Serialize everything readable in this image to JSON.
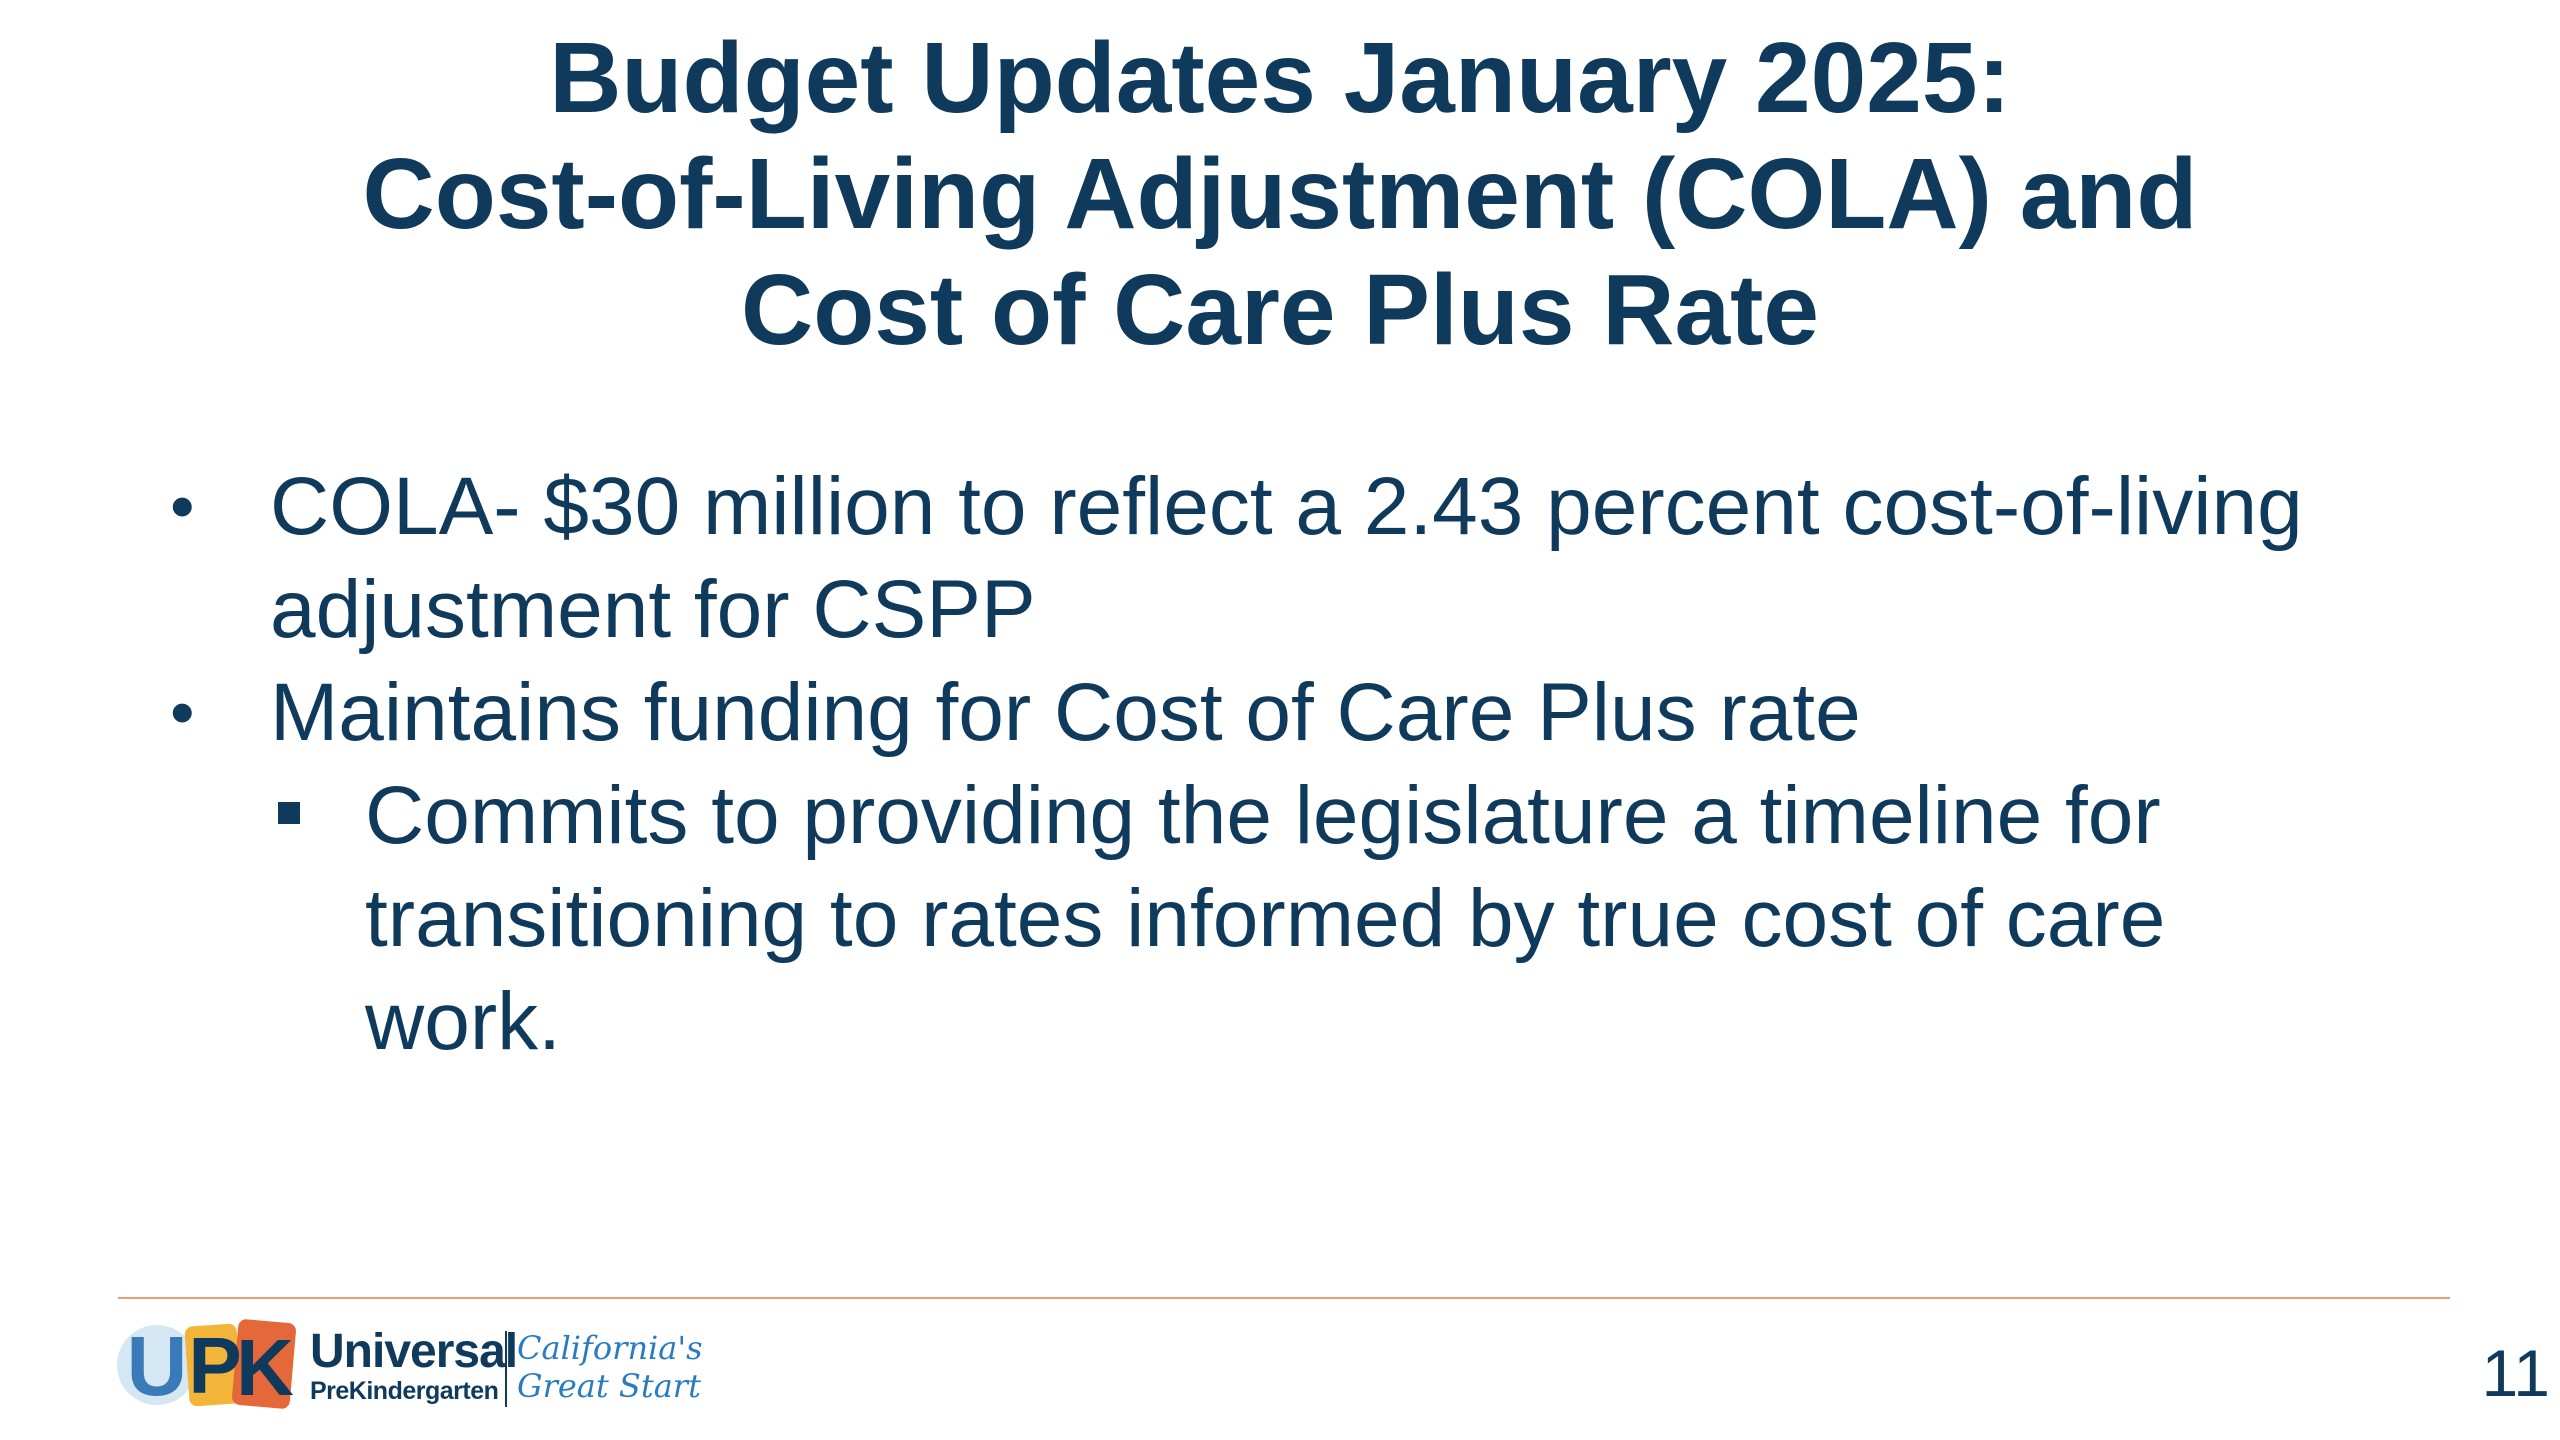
{
  "slide": {
    "title_lines": [
      "Budget Updates January 2025:",
      "Cost-of-Living Adjustment (COLA) and",
      "Cost of Care Plus Rate"
    ],
    "bullets": [
      {
        "marker": "•",
        "lines": [
          "COLA- $30 million to reflect a 2.43 percent cost-of-living",
          "adjustment for CSPP"
        ]
      },
      {
        "marker": "•",
        "lines": [
          "Maintains funding for Cost of Care Plus rate"
        ]
      }
    ],
    "sub_bullets": [
      {
        "marker": "square",
        "lines": [
          "Commits to providing the legislature a timeline for",
          "transitioning to rates informed by true cost of care",
          "work."
        ]
      }
    ],
    "page_number": "11"
  },
  "footer": {
    "logo": {
      "letters": [
        "U",
        "P",
        "K"
      ],
      "brand_line1": "Universal",
      "brand_line2": "PreKindergarten",
      "tagline_line1": "California's",
      "tagline_line2": "Great Start"
    },
    "line_color": "#e8a07a"
  },
  "colors": {
    "text": "#0f3a5c",
    "accent_blue": "#2a7cc0",
    "logo_u": "#3a7ab8",
    "logo_p": "#f2b53a",
    "logo_k": "#e5683a"
  }
}
